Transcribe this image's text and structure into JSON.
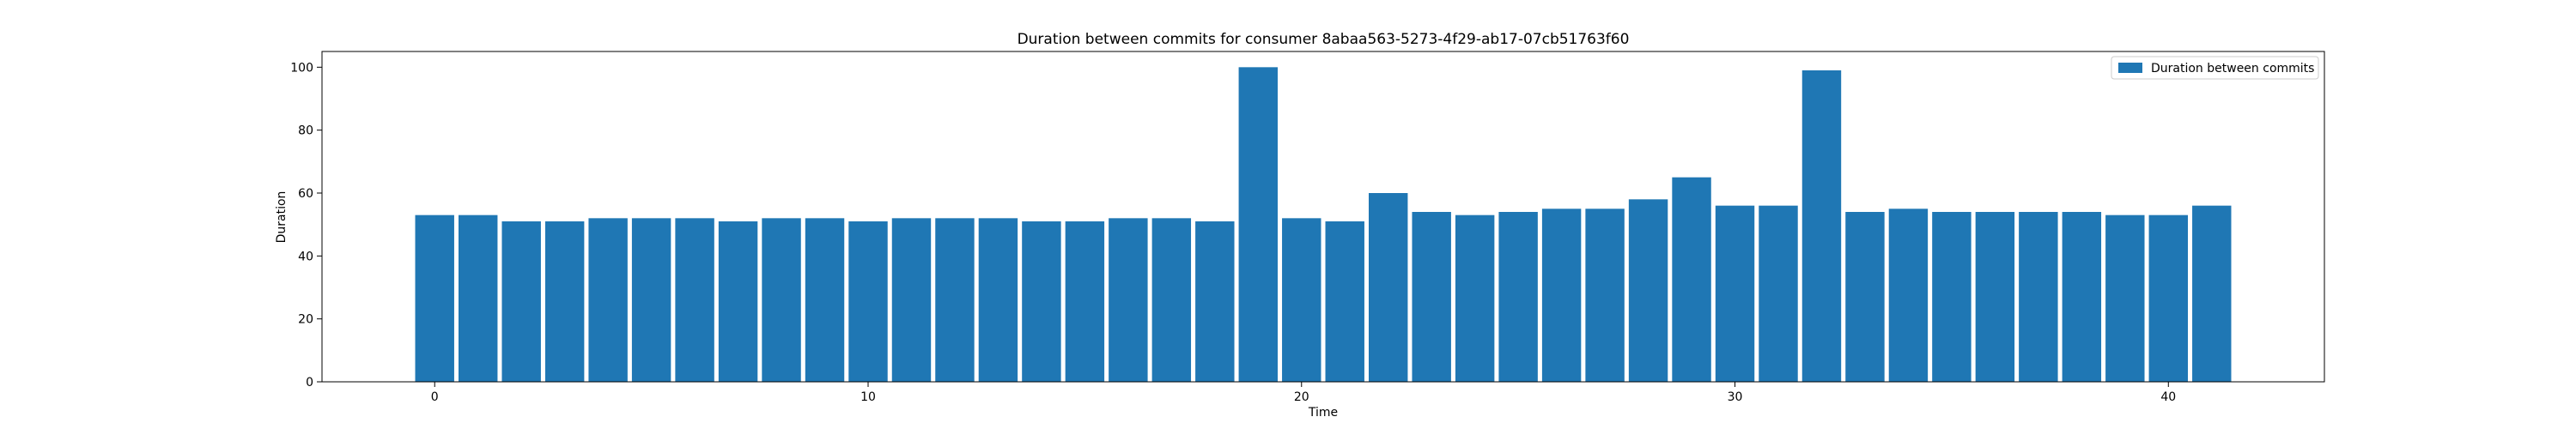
{
  "chart_data": {
    "type": "bar",
    "title": "Duration between commits for consumer 8abaa563-5273-4f29-ab17-07cb51763f60",
    "xlabel": "Time",
    "ylabel": "Duration",
    "xlim": [
      -2.6,
      43.6
    ],
    "ylim": [
      0,
      105
    ],
    "xticks": [
      0,
      10,
      20,
      30,
      40
    ],
    "yticks": [
      0,
      20,
      40,
      60,
      80,
      100
    ],
    "grid": false,
    "legend_position": "top-right",
    "bar_color": "#1f77b4",
    "series": [
      {
        "name": "Duration between commits",
        "x": [
          0,
          1,
          2,
          3,
          4,
          5,
          6,
          7,
          8,
          9,
          10,
          11,
          12,
          13,
          14,
          15,
          16,
          17,
          18,
          19,
          20,
          21,
          22,
          23,
          24,
          25,
          26,
          27,
          28,
          29,
          30,
          31,
          32,
          33,
          34,
          35,
          36,
          37,
          38,
          39,
          40,
          41
        ],
        "values": [
          53,
          53,
          51,
          51,
          52,
          52,
          52,
          51,
          52,
          52,
          51,
          52,
          52,
          52,
          51,
          51,
          52,
          52,
          51,
          100,
          52,
          51,
          60,
          54,
          53,
          54,
          55,
          55,
          58,
          65,
          56,
          56,
          99,
          54,
          55,
          54,
          54,
          54,
          54,
          53,
          53,
          56
        ]
      }
    ]
  }
}
